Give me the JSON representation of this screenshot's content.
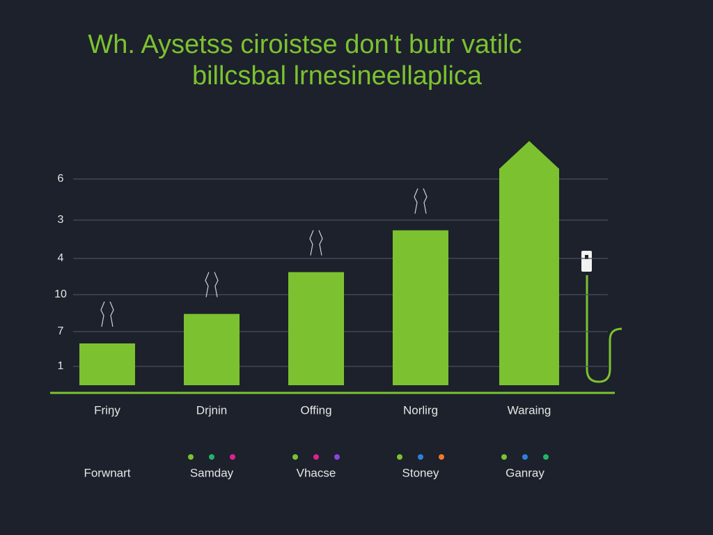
{
  "chart_data": {
    "type": "bar",
    "title": "Wh. Aysetss ciroistse don't butr vatilc",
    "subtitle": "billcsbal lrnesineellaplica",
    "y_labels": [
      "6",
      "3",
      "4",
      "10",
      "7",
      "1"
    ],
    "categories": [
      "Friŋy",
      "Drjnin",
      "Offing",
      "Norlirg",
      "Waraing"
    ],
    "values": [
      17,
      29,
      46,
      63,
      88
    ],
    "ylim": [
      0,
      100
    ],
    "color": "#7cc230",
    "grid": true,
    "legend": [
      {
        "label": "Forwnart",
        "dots": []
      },
      {
        "label": "Samday",
        "dots": [
          "#7cc230",
          "#22b36a",
          "#e0208f"
        ]
      },
      {
        "label": "Vhacse",
        "dots": [
          "#7cc230",
          "#e0208f",
          "#8a44d8"
        ]
      },
      {
        "label": "Stoney",
        "dots": [
          "#7cc230",
          "#2f7fe0",
          "#ee7a2a"
        ]
      },
      {
        "label": "Ganray",
        "dots": [
          "#7cc230",
          "#2f7fe0",
          "#22b36a"
        ]
      }
    ]
  }
}
